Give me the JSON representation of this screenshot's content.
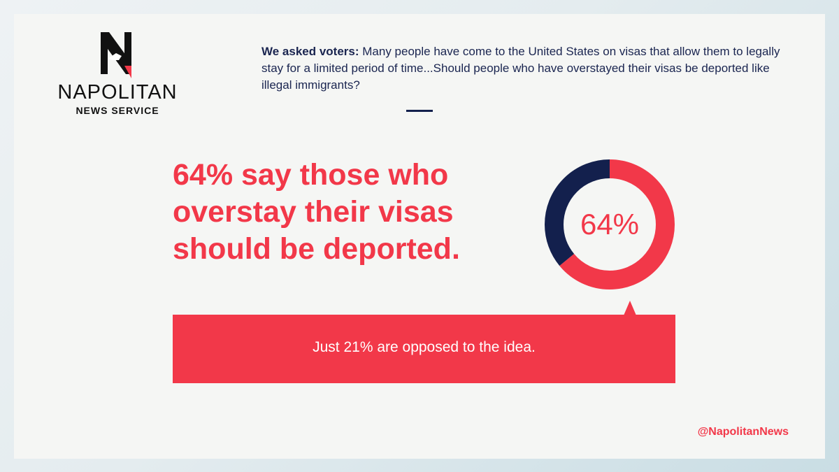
{
  "brand": {
    "name": "NAPOLITAN",
    "subtitle": "NEWS SERVICE",
    "handle": "@NapolitanNews"
  },
  "question": {
    "lead": "We asked voters:",
    "text": "Many people have come to the United States on visas that allow them to legally stay for a limited period of time...Should people who have overstayed their visas be deported like illegal immigrants?"
  },
  "headline": "64% say those who overstay their visas should be deported.",
  "callout": "Just 21% are opposed to the idea.",
  "colors": {
    "accent": "#f23849",
    "navy": "#13204d",
    "background": "#f5f6f4"
  },
  "chart_data": {
    "type": "pie",
    "style": "donut",
    "center_label": "64%",
    "values": [
      64,
      36
    ],
    "colors": [
      "#f23849",
      "#13204d"
    ]
  }
}
